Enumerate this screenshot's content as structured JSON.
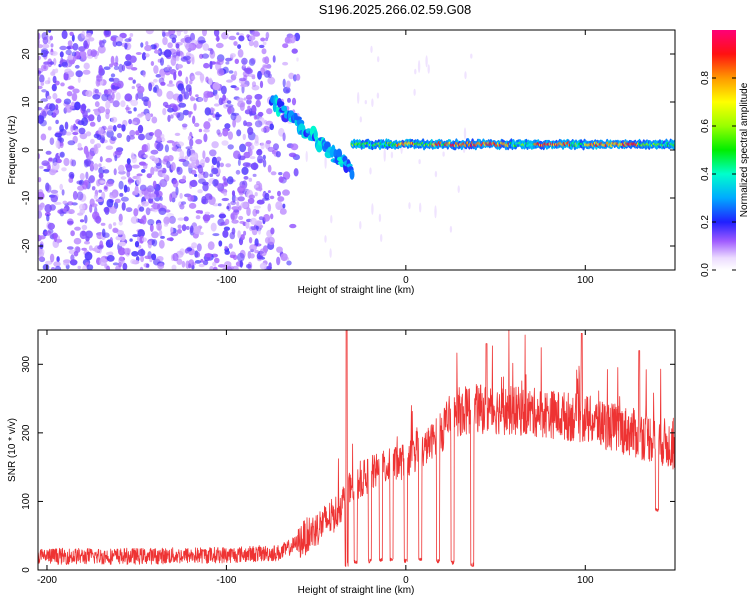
{
  "title": "S196.2025.266.02.59.G08",
  "chart_data": [
    {
      "type": "heatmap",
      "name": "spectrogram",
      "xlabel": "Height of straight line (km)",
      "ylabel": "Frequency (Hz)",
      "xlim": [
        -205,
        150
      ],
      "ylim": [
        -25,
        25
      ],
      "xticks": [
        -200,
        -100,
        0,
        100
      ],
      "yticks": [
        -20,
        -10,
        0,
        10,
        20
      ],
      "colorbar": {
        "label": "Normalized spectral amplitude",
        "range": [
          0,
          1
        ],
        "ticks": [
          0.0,
          0.2,
          0.4,
          0.6,
          0.8
        ]
      },
      "features": {
        "noise_region_x": [
          -205,
          -60
        ],
        "noise_level": 0.15,
        "transition_x": [
          -75,
          -30
        ],
        "transition_freq_start": 10,
        "transition_freq_end": -4,
        "signal_start_x": -30,
        "signal_freq": 1.2,
        "signal_level_typical": 0.7,
        "signal_level_peak": 0.95,
        "peak_segments": [
          [
            -5,
            5
          ],
          [
            15,
            20
          ],
          [
            22,
            58
          ],
          [
            72,
            92
          ],
          [
            100,
            130
          ]
        ]
      }
    },
    {
      "type": "line",
      "name": "snr",
      "xlabel": "Height of straight line (km)",
      "ylabel": "SNR (10 * v/v)",
      "xlim": [
        -205,
        150
      ],
      "ylim": [
        0,
        350
      ],
      "xticks": [
        -200,
        -100,
        0,
        100
      ],
      "yticks": [
        0,
        100,
        200,
        300
      ],
      "color": "#ee3333",
      "profile": [
        {
          "x": -205,
          "y": 20
        },
        {
          "x": -150,
          "y": 20
        },
        {
          "x": -100,
          "y": 22
        },
        {
          "x": -70,
          "y": 25
        },
        {
          "x": -60,
          "y": 40
        },
        {
          "x": -50,
          "y": 60
        },
        {
          "x": -40,
          "y": 80
        },
        {
          "x": -35,
          "y": 100
        },
        {
          "x": -30,
          "y": 120
        },
        {
          "x": -20,
          "y": 140
        },
        {
          "x": -10,
          "y": 150
        },
        {
          "x": 0,
          "y": 160
        },
        {
          "x": 10,
          "y": 175
        },
        {
          "x": 20,
          "y": 205
        },
        {
          "x": 28,
          "y": 230
        },
        {
          "x": 40,
          "y": 235
        },
        {
          "x": 60,
          "y": 232
        },
        {
          "x": 80,
          "y": 228
        },
        {
          "x": 100,
          "y": 220
        },
        {
          "x": 120,
          "y": 205
        },
        {
          "x": 140,
          "y": 190
        },
        {
          "x": 150,
          "y": 180
        }
      ],
      "spikes": [
        {
          "x": -33,
          "y": 350
        },
        {
          "x": 98,
          "y": 345
        },
        {
          "x": 45,
          "y": 330
        },
        {
          "x": 130,
          "y": 320
        }
      ],
      "dips": [
        {
          "x": -33,
          "y": 5
        },
        {
          "x": -28,
          "y": 8
        },
        {
          "x": -20,
          "y": 10
        },
        {
          "x": -14,
          "y": 12
        },
        {
          "x": -8,
          "y": 12
        },
        {
          "x": 0,
          "y": 10
        },
        {
          "x": 8,
          "y": 12
        },
        {
          "x": 18,
          "y": 10
        },
        {
          "x": 26,
          "y": 8
        },
        {
          "x": 37,
          "y": 5
        },
        {
          "x": 140,
          "y": 85
        }
      ],
      "noise_amplitude": 12
    }
  ]
}
